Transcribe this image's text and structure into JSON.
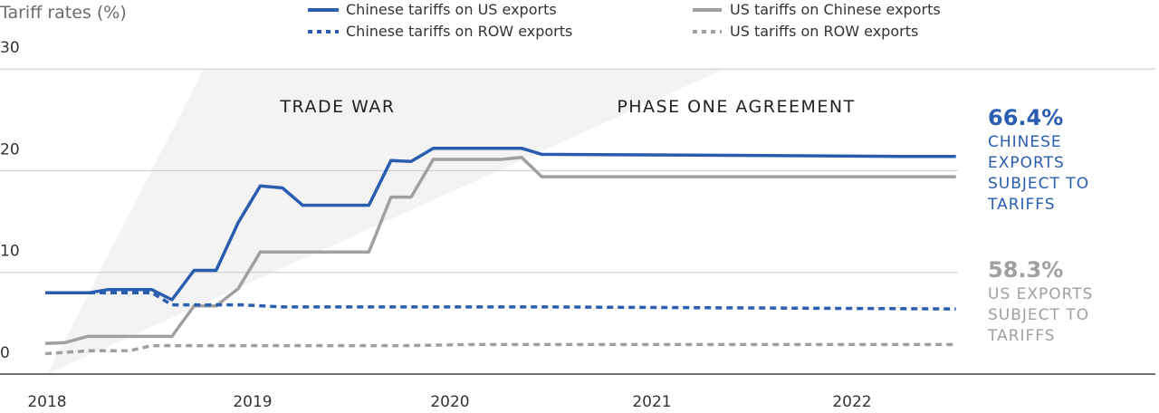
{
  "chart_data": {
    "type": "line",
    "title": "",
    "ylabel": "Tariff rates (%)",
    "xlabel": "",
    "ylim": [
      0,
      30
    ],
    "xlim": [
      2018.0,
      2022.5
    ],
    "yticks": [
      "0",
      "10",
      "20",
      "30"
    ],
    "xticks": [
      "2018",
      "2019",
      "2020",
      "2021",
      "2022"
    ],
    "grid": true,
    "legend_position": "top",
    "series": [
      {
        "name": "Chinese tariffs on US exports",
        "style": "solid",
        "color": "#2a5db0",
        "points": [
          [
            2018.0,
            8.0
          ],
          [
            2018.22,
            8.0
          ],
          [
            2018.31,
            8.3
          ],
          [
            2018.53,
            8.3
          ],
          [
            2018.63,
            7.3
          ],
          [
            2018.74,
            10.2
          ],
          [
            2018.85,
            10.2
          ],
          [
            2018.96,
            14.9
          ],
          [
            2019.07,
            18.5
          ],
          [
            2019.18,
            18.3
          ],
          [
            2019.28,
            16.6
          ],
          [
            2019.61,
            16.6
          ],
          [
            2019.72,
            21.0
          ],
          [
            2019.82,
            20.9
          ],
          [
            2019.93,
            22.2
          ],
          [
            2020.37,
            22.2
          ],
          [
            2020.47,
            21.6
          ],
          [
            2021.5,
            21.5
          ],
          [
            2022.28,
            21.4
          ],
          [
            2022.53,
            21.4
          ]
        ]
      },
      {
        "name": "US tariffs on Chinese exports",
        "style": "solid",
        "color": "#a0a0a0",
        "points": [
          [
            2018.0,
            3.0
          ],
          [
            2018.1,
            3.1
          ],
          [
            2018.21,
            3.7
          ],
          [
            2018.63,
            3.7
          ],
          [
            2018.74,
            6.7
          ],
          [
            2018.85,
            6.7
          ],
          [
            2018.96,
            8.4
          ],
          [
            2019.07,
            12.0
          ],
          [
            2019.61,
            12.0
          ],
          [
            2019.72,
            17.4
          ],
          [
            2019.82,
            17.4
          ],
          [
            2019.93,
            21.1
          ],
          [
            2020.27,
            21.1
          ],
          [
            2020.37,
            21.3
          ],
          [
            2020.47,
            19.4
          ],
          [
            2022.53,
            19.4
          ]
        ]
      },
      {
        "name": "Chinese tariffs on ROW exports",
        "style": "dashed",
        "color": "#2a5db0",
        "points": [
          [
            2018.0,
            8.0
          ],
          [
            2018.53,
            8.0
          ],
          [
            2018.63,
            6.8
          ],
          [
            2018.98,
            6.8
          ],
          [
            2019.18,
            6.6
          ],
          [
            2020.5,
            6.6
          ],
          [
            2021.5,
            6.5
          ],
          [
            2022.53,
            6.4
          ]
        ]
      },
      {
        "name": "US tariffs on ROW exports",
        "style": "dashed",
        "color": "#a0a0a0",
        "points": [
          [
            2018.0,
            2.0
          ],
          [
            2018.22,
            2.3
          ],
          [
            2018.42,
            2.3
          ],
          [
            2018.53,
            2.8
          ],
          [
            2019.8,
            2.8
          ],
          [
            2020.1,
            2.9
          ],
          [
            2022.53,
            2.9
          ]
        ]
      }
    ],
    "annotations": {
      "phases": [
        "TRADE WAR",
        "PHASE ONE AGREEMENT"
      ],
      "china_callout": {
        "value": "66.4%",
        "lines": [
          "CHINESE",
          "EXPORTS",
          "SUBJECT TO",
          "TARIFFS"
        ],
        "color": "#2a5db0"
      },
      "us_callout": {
        "value": "58.3%",
        "lines": [
          "US EXPORTS",
          "SUBJECT TO",
          "TARIFFS"
        ],
        "color": "#a0a0a0"
      }
    }
  }
}
